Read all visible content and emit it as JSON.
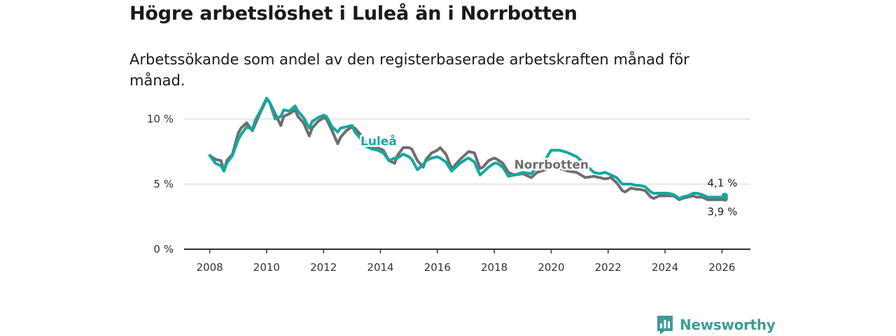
{
  "header": {
    "title": "Högre arbetslöshet i Luleå än i Norrbotten",
    "subtitle": "Arbetssökande som andel av den registerbaserade arbetskraften månad för månad."
  },
  "branding": {
    "name": "Newsworthy"
  },
  "colors": {
    "lulea": "#13a89e",
    "norrbotten": "#6e6e6e",
    "grid": "#d9d9d9",
    "axis": "#333333",
    "brand": "#3f9b96"
  },
  "chart_data": {
    "type": "line",
    "title": "Högre arbetslöshet i Luleå än i Norrbotten",
    "subtitle": "Arbetssökande som andel av den registerbaserade arbetskraften månad för månad.",
    "xlabel": "",
    "ylabel": "",
    "x_unit": "year",
    "xlim": [
      2007.1,
      2027.0
    ],
    "ylim": [
      0,
      10
    ],
    "x_ticks": [
      2008,
      2010,
      2012,
      2014,
      2016,
      2018,
      2020,
      2022,
      2024,
      2026
    ],
    "x_tick_labels": [
      "2008",
      "2010",
      "2012",
      "2014",
      "2016",
      "2018",
      "2020",
      "2022",
      "2024",
      "2026"
    ],
    "y_ticks": [
      0,
      5,
      10
    ],
    "y_tick_labels": [
      "0 %",
      "5 %",
      "10 %"
    ],
    "grid": true,
    "series": [
      {
        "name": "Norrbotten",
        "label": "Norrbotten",
        "color": "#6e6e6e",
        "x": [
          2008.0,
          2008.2,
          2008.4,
          2008.5,
          2008.6,
          2008.8,
          2009.0,
          2009.1,
          2009.3,
          2009.5,
          2009.6,
          2009.8,
          2010.0,
          2010.1,
          2010.3,
          2010.5,
          2010.6,
          2010.8,
          2011.0,
          2011.1,
          2011.3,
          2011.5,
          2011.6,
          2011.8,
          2012.0,
          2012.1,
          2012.3,
          2012.5,
          2012.6,
          2012.8,
          2013.0,
          2013.1,
          2013.3,
          2013.5,
          2013.7,
          2013.9,
          2014.1,
          2014.3,
          2014.5,
          2014.6,
          2014.8,
          2015.0,
          2015.1,
          2015.3,
          2015.5,
          2015.6,
          2015.8,
          2016.0,
          2016.1,
          2016.3,
          2016.5,
          2016.6,
          2016.8,
          2017.0,
          2017.1,
          2017.3,
          2017.5,
          2017.6,
          2017.8,
          2018.0,
          2018.1,
          2018.3,
          2018.5,
          2018.7,
          2019.0,
          2019.3,
          2019.5,
          2019.8,
          2020.0,
          2020.3,
          2020.6,
          2020.9,
          2021.2,
          2021.5,
          2021.7,
          2021.9,
          2022.1,
          2022.3,
          2022.5,
          2022.6,
          2022.8,
          2023.0,
          2023.1,
          2023.3,
          2023.5,
          2023.6,
          2023.8,
          2024.0,
          2024.1,
          2024.3,
          2024.5,
          2024.6,
          2024.8,
          2025.0,
          2025.1,
          2025.3,
          2025.5,
          2025.6,
          2025.8,
          2026.0,
          2026.1
        ],
        "values": [
          7.2,
          6.9,
          6.8,
          6.0,
          6.8,
          7.3,
          8.9,
          9.3,
          9.7,
          9.1,
          9.6,
          10.6,
          11.5,
          11.3,
          10.4,
          9.5,
          10.2,
          10.4,
          10.7,
          10.2,
          9.7,
          8.7,
          9.3,
          9.8,
          10.1,
          10.0,
          9.1,
          8.1,
          8.6,
          9.1,
          9.4,
          9.3,
          8.8,
          8.1,
          7.9,
          7.8,
          7.6,
          6.8,
          6.6,
          7.2,
          7.8,
          7.8,
          7.7,
          6.8,
          6.3,
          6.9,
          7.4,
          7.6,
          7.8,
          7.3,
          6.2,
          6.4,
          6.9,
          7.3,
          7.5,
          7.4,
          6.2,
          6.3,
          6.8,
          7.0,
          6.9,
          6.6,
          5.9,
          5.7,
          5.8,
          5.5,
          5.9,
          6.1,
          6.4,
          6.2,
          6.0,
          5.9,
          5.5,
          5.6,
          5.5,
          5.4,
          5.5,
          5.1,
          4.5,
          4.4,
          4.7,
          4.6,
          4.6,
          4.5,
          4.0,
          3.9,
          4.1,
          4.1,
          4.1,
          4.1,
          3.8,
          3.9,
          4.0,
          4.1,
          4.0,
          4.0,
          3.8,
          3.8,
          3.8,
          3.8,
          3.9
        ],
        "end_value_label": "3,9 %"
      },
      {
        "name": "Luleå",
        "label": "Luleå",
        "color": "#13a89e",
        "x": [
          2008.0,
          2008.2,
          2008.4,
          2008.5,
          2008.6,
          2008.8,
          2009.0,
          2009.1,
          2009.3,
          2009.5,
          2009.6,
          2009.8,
          2010.0,
          2010.1,
          2010.3,
          2010.5,
          2010.6,
          2010.8,
          2011.0,
          2011.1,
          2011.3,
          2011.5,
          2011.6,
          2011.8,
          2012.0,
          2012.1,
          2012.3,
          2012.5,
          2012.6,
          2012.8,
          2013.0,
          2013.1,
          2013.3,
          2013.5,
          2013.7,
          2013.9,
          2014.1,
          2014.3,
          2014.5,
          2014.6,
          2014.8,
          2015.0,
          2015.1,
          2015.3,
          2015.5,
          2015.6,
          2015.8,
          2016.0,
          2016.1,
          2016.3,
          2016.5,
          2016.6,
          2016.8,
          2017.0,
          2017.1,
          2017.3,
          2017.5,
          2017.6,
          2017.8,
          2018.0,
          2018.1,
          2018.3,
          2018.5,
          2018.7,
          2019.0,
          2019.3,
          2019.5,
          2019.8,
          2020.0,
          2020.3,
          2020.6,
          2020.9,
          2021.2,
          2021.5,
          2021.7,
          2021.9,
          2022.1,
          2022.3,
          2022.5,
          2022.6,
          2022.8,
          2023.0,
          2023.1,
          2023.3,
          2023.5,
          2023.6,
          2023.8,
          2024.0,
          2024.1,
          2024.3,
          2024.5,
          2024.6,
          2024.8,
          2025.0,
          2025.1,
          2025.3,
          2025.5,
          2025.6,
          2025.8,
          2026.0,
          2026.1
        ],
        "values": [
          7.2,
          6.6,
          6.4,
          6.0,
          6.6,
          7.2,
          8.4,
          8.8,
          9.4,
          9.2,
          9.9,
          10.7,
          11.6,
          11.3,
          10.0,
          10.2,
          10.7,
          10.6,
          11.0,
          10.6,
          10.1,
          9.3,
          9.8,
          10.1,
          10.3,
          10.2,
          9.4,
          9.0,
          9.3,
          9.4,
          9.5,
          9.0,
          8.5,
          7.9,
          7.7,
          7.6,
          7.4,
          6.8,
          7.0,
          7.0,
          7.3,
          7.1,
          6.9,
          6.1,
          6.5,
          6.8,
          7.0,
          7.1,
          7.0,
          6.7,
          6.0,
          6.2,
          6.6,
          6.9,
          7.0,
          6.7,
          5.7,
          5.9,
          6.3,
          6.6,
          6.6,
          6.3,
          5.6,
          5.7,
          5.9,
          5.8,
          6.3,
          6.9,
          7.6,
          7.6,
          7.4,
          7.1,
          6.5,
          5.9,
          5.8,
          5.9,
          5.7,
          5.5,
          5.0,
          5.0,
          5.0,
          4.9,
          4.9,
          4.8,
          4.4,
          4.3,
          4.3,
          4.3,
          4.3,
          4.2,
          3.9,
          4.0,
          4.1,
          4.3,
          4.3,
          4.2,
          4.0,
          4.0,
          4.0,
          4.0,
          4.1
        ],
        "end_value_label": "4,1 %"
      }
    ]
  }
}
